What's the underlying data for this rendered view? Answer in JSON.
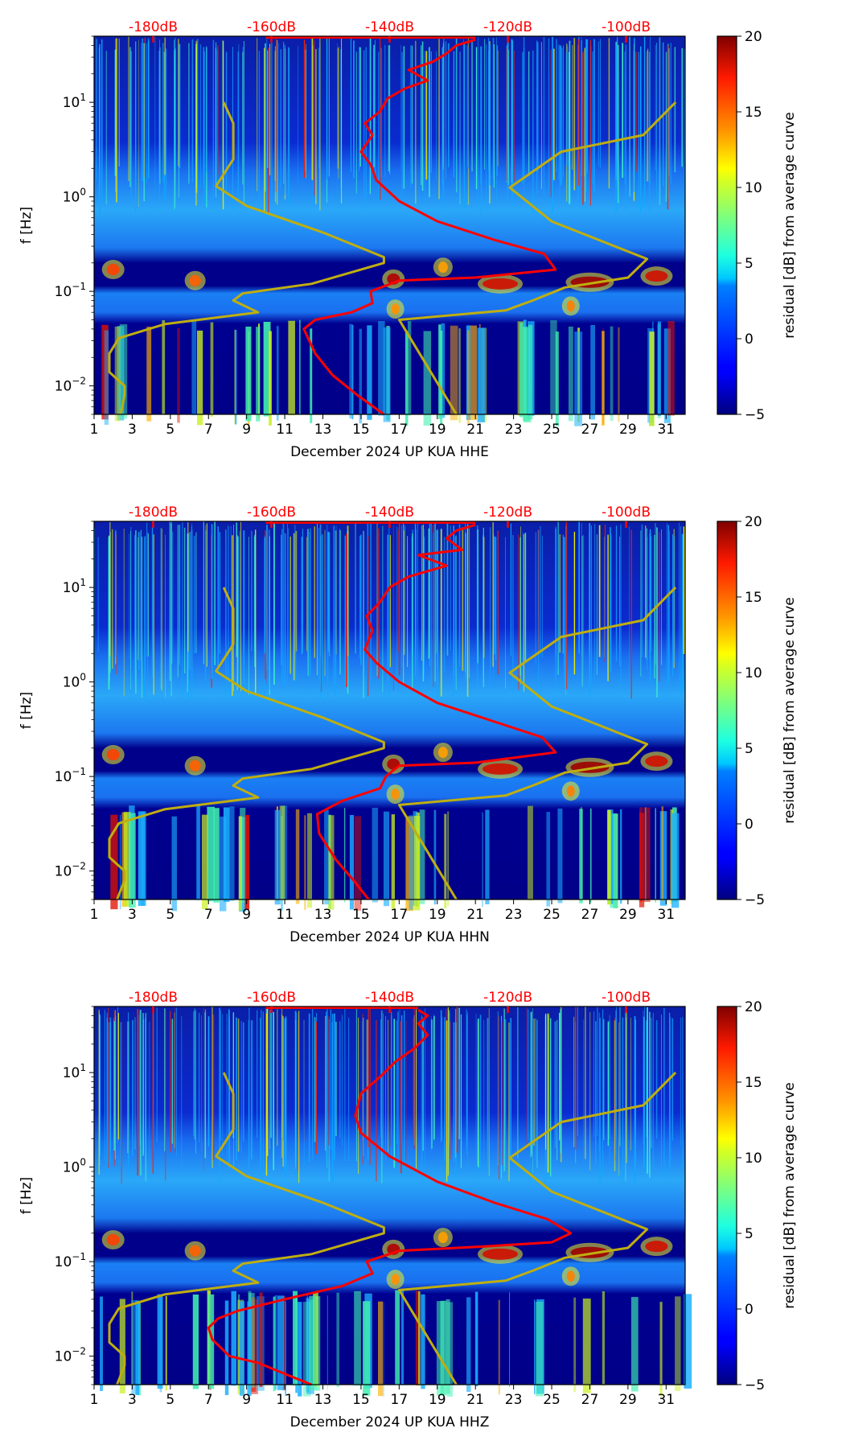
{
  "colors": {
    "red_curve": "#ff0000",
    "olive_curve": "#bfae10",
    "db_label": "#ff0000",
    "axis": "#000000"
  },
  "chart_data": [
    {
      "type": "heatmap",
      "title": "",
      "channel": "HHE",
      "xlabel": "December 2024 UP KUA  HHE",
      "ylabel": "f [Hz]",
      "xlim": [
        1,
        32
      ],
      "ylim": [
        0.005,
        50
      ],
      "yscale": "log",
      "xticks": [
        1,
        3,
        5,
        7,
        9,
        11,
        13,
        15,
        17,
        19,
        21,
        23,
        25,
        27,
        29,
        31
      ],
      "xticklabels": [
        "1",
        "3",
        "5",
        "7",
        "9",
        "11",
        "13",
        "15",
        "17",
        "19",
        "21",
        "23",
        "25",
        "27",
        "29",
        "31"
      ],
      "yticks": [
        0.01,
        0.1,
        1,
        10
      ],
      "yticklabels": [
        {
          "base": "10",
          "exp": "−2"
        },
        {
          "base": "10",
          "exp": "−1"
        },
        {
          "base": "10",
          "exp": "0"
        },
        {
          "base": "10",
          "exp": "1"
        }
      ],
      "top_axis": {
        "ticks": [
          -180,
          -160,
          -140,
          -120,
          -100
        ],
        "labels": [
          "-180dB",
          "-160dB",
          "-140dB",
          "-120dB",
          "-100dB"
        ],
        "x_at": [
          4.1,
          10.3,
          16.5,
          22.7,
          28.9
        ]
      },
      "colorbar": {
        "label": "residual [dB] from average curve",
        "range": [
          -5,
          20
        ],
        "ticks": [
          -5,
          0,
          5,
          10,
          15,
          20
        ],
        "ticklabels": [
          "−5",
          "0",
          "5",
          "10",
          "15",
          "20"
        ],
        "colormap": "jet"
      },
      "red_curve": [
        [
          16.2,
          0.005
        ],
        [
          14.8,
          0.008
        ],
        [
          13.5,
          0.013
        ],
        [
          12.6,
          0.022
        ],
        [
          12.0,
          0.04
        ],
        [
          12.6,
          0.05
        ],
        [
          14.5,
          0.06
        ],
        [
          15.6,
          0.075
        ],
        [
          15.5,
          0.1
        ],
        [
          17.0,
          0.13
        ],
        [
          21.0,
          0.14
        ],
        [
          25.2,
          0.17
        ],
        [
          24.6,
          0.25
        ],
        [
          22.0,
          0.35
        ],
        [
          19.0,
          0.55
        ],
        [
          17.0,
          0.9
        ],
        [
          15.8,
          1.5
        ],
        [
          15.5,
          2.2
        ],
        [
          15.0,
          3.0
        ],
        [
          15.6,
          4.5
        ],
        [
          15.2,
          6
        ],
        [
          16.0,
          8
        ],
        [
          16.4,
          11
        ],
        [
          17.3,
          14
        ],
        [
          18.5,
          17
        ],
        [
          17.5,
          22
        ],
        [
          18.8,
          27
        ],
        [
          19.5,
          33
        ],
        [
          20.0,
          40
        ],
        [
          21.0,
          46
        ]
      ],
      "olive_curve": [
        [
          2.4,
          0.005
        ],
        [
          2.6,
          0.008
        ],
        [
          2.6,
          0.01
        ],
        [
          1.8,
          0.014
        ],
        [
          1.8,
          0.022
        ],
        [
          2.3,
          0.032
        ],
        [
          4.7,
          0.045
        ],
        [
          9.6,
          0.06
        ],
        [
          8.3,
          0.08
        ],
        [
          8.8,
          0.095
        ],
        [
          12.4,
          0.12
        ],
        [
          16.2,
          0.2
        ],
        [
          16.2,
          0.23
        ],
        [
          13.0,
          0.42
        ],
        [
          9.0,
          0.8
        ],
        [
          7.4,
          1.3
        ],
        [
          8.3,
          2.5
        ],
        [
          8.3,
          6
        ],
        [
          7.8,
          10
        ]
      ],
      "olive_curve2": [
        [
          20.0,
          0.005
        ],
        [
          17.0,
          0.05
        ],
        [
          22.6,
          0.063
        ],
        [
          24.0,
          0.08
        ],
        [
          25.7,
          0.11
        ],
        [
          29.0,
          0.14
        ],
        [
          30.0,
          0.22
        ],
        [
          25.0,
          0.55
        ],
        [
          22.8,
          1.25
        ],
        [
          25.5,
          3.0
        ],
        [
          29.8,
          4.5
        ],
        [
          31.5,
          10
        ]
      ]
    },
    {
      "type": "heatmap",
      "title": "",
      "channel": "HHN",
      "xlabel": "December 2024 UP KUA  HHN",
      "ylabel": "f [Hz]",
      "xlim": [
        1,
        32
      ],
      "ylim": [
        0.005,
        50
      ],
      "yscale": "log",
      "xticks": [
        1,
        3,
        5,
        7,
        9,
        11,
        13,
        15,
        17,
        19,
        21,
        23,
        25,
        27,
        29,
        31
      ],
      "xticklabels": [
        "1",
        "3",
        "5",
        "7",
        "9",
        "11",
        "13",
        "15",
        "17",
        "19",
        "21",
        "23",
        "25",
        "27",
        "29",
        "31"
      ],
      "yticks": [
        0.01,
        0.1,
        1,
        10
      ],
      "yticklabels": [
        {
          "base": "10",
          "exp": "−2"
        },
        {
          "base": "10",
          "exp": "−1"
        },
        {
          "base": "10",
          "exp": "0"
        },
        {
          "base": "10",
          "exp": "1"
        }
      ],
      "top_axis": {
        "ticks": [
          -180,
          -160,
          -140,
          -120,
          -100
        ],
        "labels": [
          "-180dB",
          "-160dB",
          "-140dB",
          "-120dB",
          "-100dB"
        ],
        "x_at": [
          4.1,
          10.3,
          16.5,
          22.7,
          28.9
        ]
      },
      "colorbar": {
        "label": "residual [dB] from average curve",
        "range": [
          -5,
          20
        ],
        "ticks": [
          -5,
          0,
          5,
          10,
          15,
          20
        ],
        "ticklabels": [
          "−5",
          "0",
          "5",
          "10",
          "15",
          "20"
        ],
        "colormap": "jet"
      },
      "red_curve": [
        [
          15.4,
          0.005
        ],
        [
          14.6,
          0.008
        ],
        [
          13.7,
          0.013
        ],
        [
          12.8,
          0.025
        ],
        [
          12.7,
          0.04
        ],
        [
          14.0,
          0.055
        ],
        [
          16.0,
          0.075
        ],
        [
          16.3,
          0.1
        ],
        [
          17.0,
          0.13
        ],
        [
          21.0,
          0.14
        ],
        [
          25.2,
          0.18
        ],
        [
          24.5,
          0.26
        ],
        [
          22.0,
          0.38
        ],
        [
          19.0,
          0.6
        ],
        [
          17.0,
          1.0
        ],
        [
          15.8,
          1.6
        ],
        [
          15.2,
          2.2
        ],
        [
          15.6,
          3.5
        ],
        [
          15.3,
          5
        ],
        [
          16.0,
          7
        ],
        [
          16.5,
          10
        ],
        [
          17.5,
          13
        ],
        [
          19.5,
          17
        ],
        [
          18.0,
          22
        ],
        [
          20.3,
          25
        ],
        [
          19.5,
          33
        ],
        [
          20.0,
          40
        ],
        [
          21.0,
          46
        ]
      ],
      "olive_curve": [
        [
          2.2,
          0.005
        ],
        [
          2.6,
          0.008
        ],
        [
          2.6,
          0.01
        ],
        [
          1.8,
          0.014
        ],
        [
          1.8,
          0.022
        ],
        [
          2.3,
          0.032
        ],
        [
          4.7,
          0.045
        ],
        [
          9.6,
          0.06
        ],
        [
          8.3,
          0.08
        ],
        [
          8.8,
          0.095
        ],
        [
          12.4,
          0.12
        ],
        [
          16.2,
          0.2
        ],
        [
          16.2,
          0.23
        ],
        [
          13.0,
          0.42
        ],
        [
          9.0,
          0.8
        ],
        [
          7.4,
          1.3
        ],
        [
          8.3,
          2.5
        ],
        [
          8.3,
          6
        ],
        [
          7.8,
          10
        ]
      ],
      "olive_curve2": [
        [
          20.0,
          0.005
        ],
        [
          17.0,
          0.05
        ],
        [
          22.6,
          0.063
        ],
        [
          24.0,
          0.08
        ],
        [
          25.7,
          0.11
        ],
        [
          29.0,
          0.14
        ],
        [
          30.0,
          0.22
        ],
        [
          25.0,
          0.55
        ],
        [
          22.8,
          1.25
        ],
        [
          25.5,
          3.0
        ],
        [
          29.8,
          4.5
        ],
        [
          31.5,
          10
        ]
      ]
    },
    {
      "type": "heatmap",
      "title": "",
      "channel": "HHZ",
      "xlabel": "December 2024 UP KUA  HHZ",
      "ylabel": "f [Hz]",
      "xlim": [
        1,
        32
      ],
      "ylim": [
        0.005,
        50
      ],
      "yscale": "log",
      "xticks": [
        1,
        3,
        5,
        7,
        9,
        11,
        13,
        15,
        17,
        19,
        21,
        23,
        25,
        27,
        29,
        31
      ],
      "xticklabels": [
        "1",
        "3",
        "5",
        "7",
        "9",
        "11",
        "13",
        "15",
        "17",
        "19",
        "21",
        "23",
        "25",
        "27",
        "29",
        "31"
      ],
      "yticks": [
        0.01,
        0.1,
        1,
        10
      ],
      "yticklabels": [
        {
          "base": "10",
          "exp": "−2"
        },
        {
          "base": "10",
          "exp": "−1"
        },
        {
          "base": "10",
          "exp": "0"
        },
        {
          "base": "10",
          "exp": "1"
        }
      ],
      "top_axis": {
        "ticks": [
          -180,
          -160,
          -140,
          -120,
          -100
        ],
        "labels": [
          "-180dB",
          "-160dB",
          "-140dB",
          "-120dB",
          "-100dB"
        ],
        "x_at": [
          4.1,
          10.3,
          16.5,
          22.7,
          28.9
        ]
      },
      "colorbar": {
        "label": "residual [dB] from average curve",
        "range": [
          -5,
          20
        ],
        "ticks": [
          -5,
          0,
          5,
          10,
          15,
          20
        ],
        "ticklabels": [
          "−5",
          "0",
          "5",
          "10",
          "15",
          "20"
        ],
        "colormap": "jet"
      },
      "red_curve": [
        [
          12.4,
          0.005
        ],
        [
          11.0,
          0.0065
        ],
        [
          9.6,
          0.0085
        ],
        [
          8.1,
          0.01
        ],
        [
          7.2,
          0.015
        ],
        [
          7.0,
          0.02
        ],
        [
          7.5,
          0.025
        ],
        [
          8.5,
          0.03
        ],
        [
          11.0,
          0.04
        ],
        [
          14.0,
          0.055
        ],
        [
          15.6,
          0.075
        ],
        [
          15.3,
          0.1
        ],
        [
          17.0,
          0.13
        ],
        [
          21.5,
          0.145
        ],
        [
          25.0,
          0.16
        ],
        [
          26.0,
          0.2
        ],
        [
          24.8,
          0.28
        ],
        [
          22.0,
          0.42
        ],
        [
          19.0,
          0.7
        ],
        [
          16.5,
          1.3
        ],
        [
          15.0,
          2.3
        ],
        [
          14.7,
          3.5
        ],
        [
          15.0,
          6
        ],
        [
          16.0,
          9
        ],
        [
          16.8,
          13
        ],
        [
          17.8,
          18
        ],
        [
          18.5,
          25
        ],
        [
          18.0,
          33
        ],
        [
          18.5,
          40
        ],
        [
          18.0,
          46
        ]
      ],
      "olive_curve": [
        [
          2.2,
          0.005
        ],
        [
          2.6,
          0.008
        ],
        [
          2.6,
          0.01
        ],
        [
          1.8,
          0.014
        ],
        [
          1.8,
          0.022
        ],
        [
          2.3,
          0.032
        ],
        [
          4.7,
          0.045
        ],
        [
          9.6,
          0.06
        ],
        [
          8.3,
          0.08
        ],
        [
          8.8,
          0.095
        ],
        [
          12.4,
          0.12
        ],
        [
          16.2,
          0.2
        ],
        [
          16.2,
          0.23
        ],
        [
          13.0,
          0.42
        ],
        [
          9.0,
          0.8
        ],
        [
          7.4,
          1.3
        ],
        [
          8.3,
          2.5
        ],
        [
          8.3,
          6
        ],
        [
          7.8,
          10
        ]
      ],
      "olive_curve2": [
        [
          20.0,
          0.005
        ],
        [
          17.0,
          0.05
        ],
        [
          22.6,
          0.063
        ],
        [
          24.0,
          0.08
        ],
        [
          25.7,
          0.11
        ],
        [
          29.0,
          0.14
        ],
        [
          30.0,
          0.22
        ],
        [
          25.0,
          0.55
        ],
        [
          22.8,
          1.25
        ],
        [
          25.5,
          3.0
        ],
        [
          29.8,
          4.5
        ],
        [
          31.5,
          10
        ]
      ]
    }
  ]
}
